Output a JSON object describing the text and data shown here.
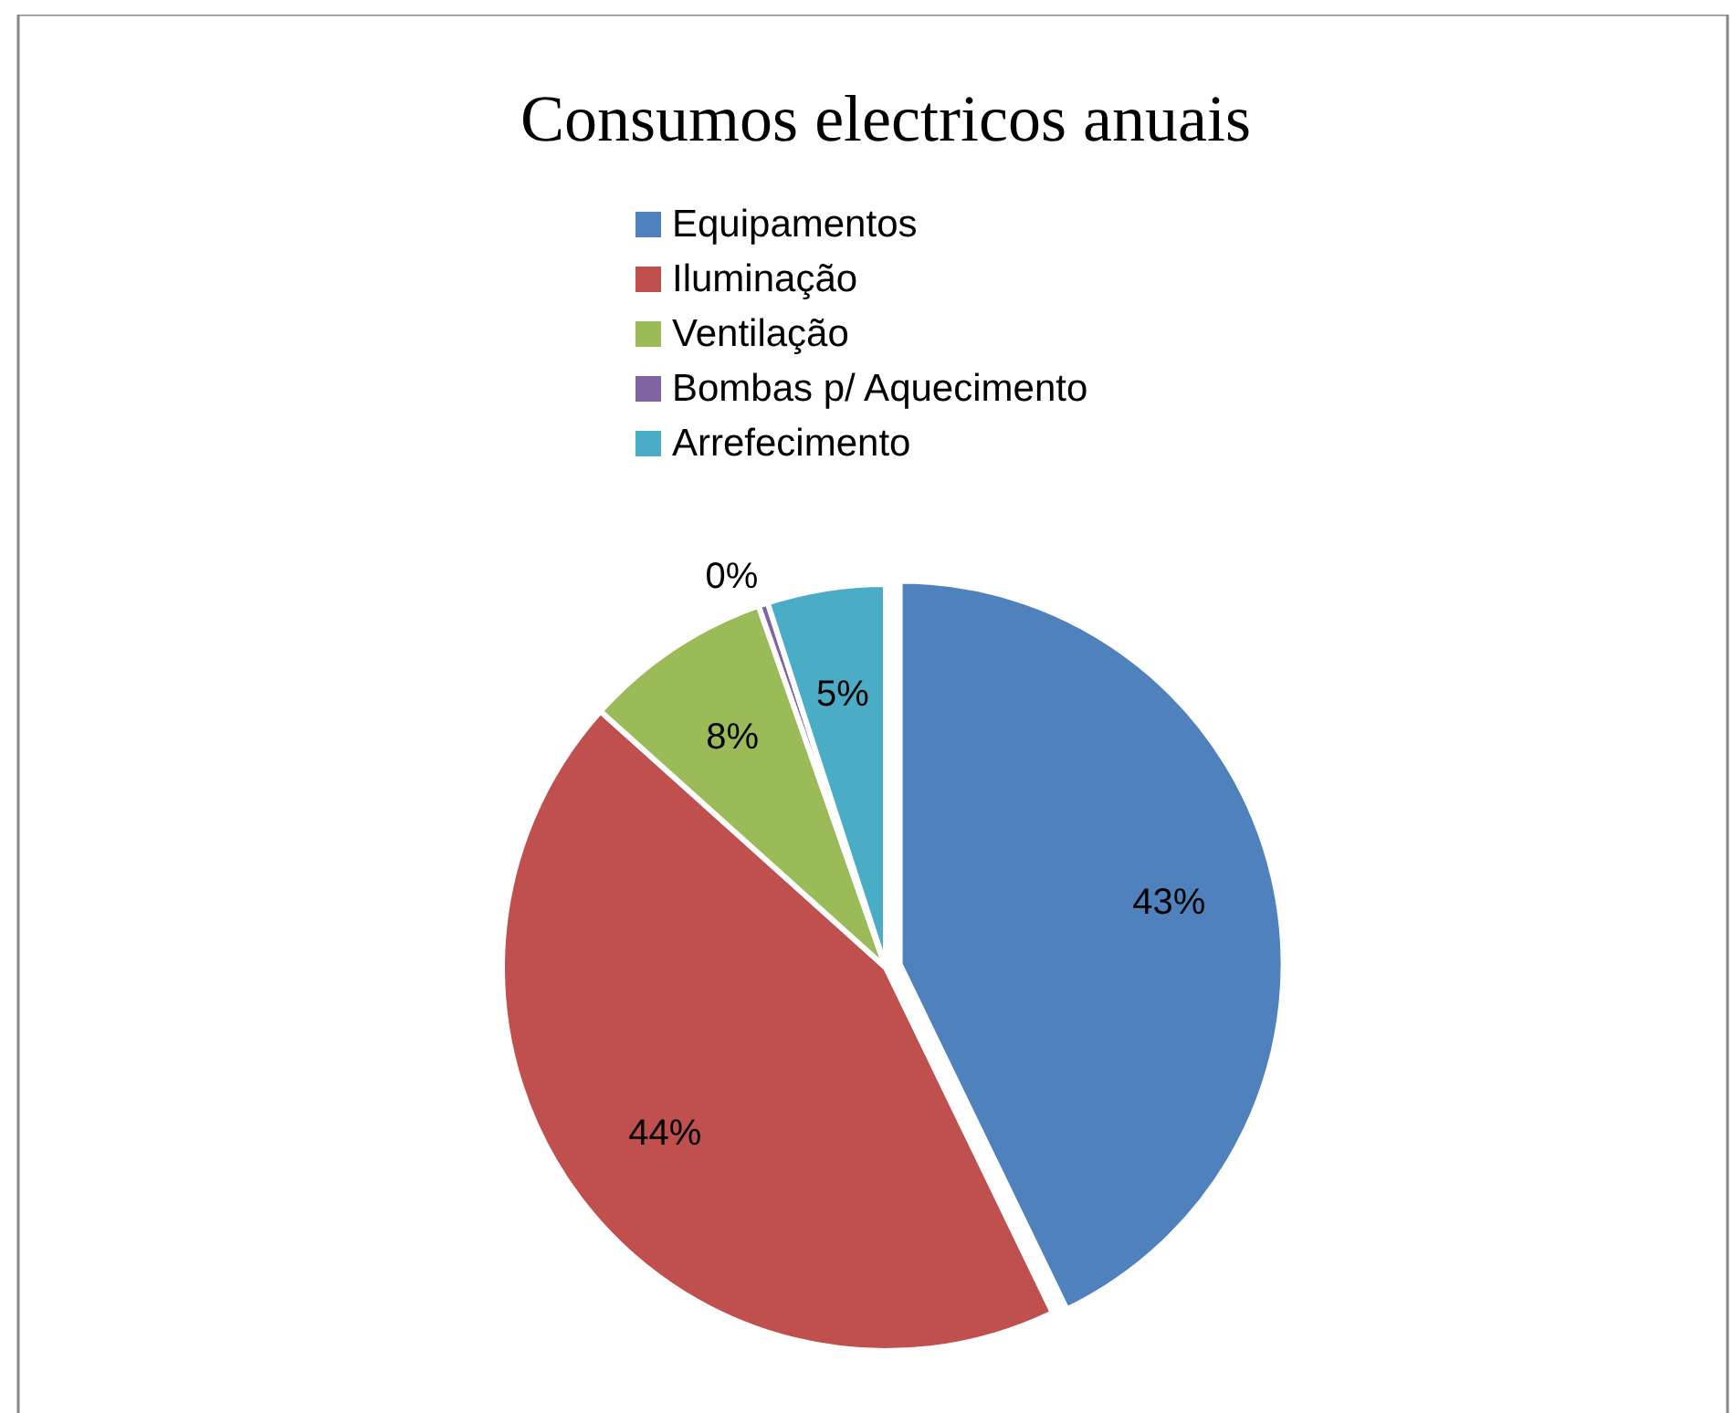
{
  "chart_data": {
    "type": "pie",
    "title": "Consumos electricos anuais",
    "categories": [
      "Equipamentos",
      "Iluminação",
      "Ventilação",
      "Bombas p/ Aquecimento",
      "Arrefecimento"
    ],
    "values": [
      43,
      44,
      8,
      0.4,
      5
    ],
    "value_labels": [
      "43%",
      "44%",
      "8%",
      "0%",
      "5%"
    ],
    "colors": [
      "#4f81bd",
      "#c0504d",
      "#9bbb59",
      "#8064a2",
      "#4bacc6"
    ],
    "legend": "top"
  }
}
